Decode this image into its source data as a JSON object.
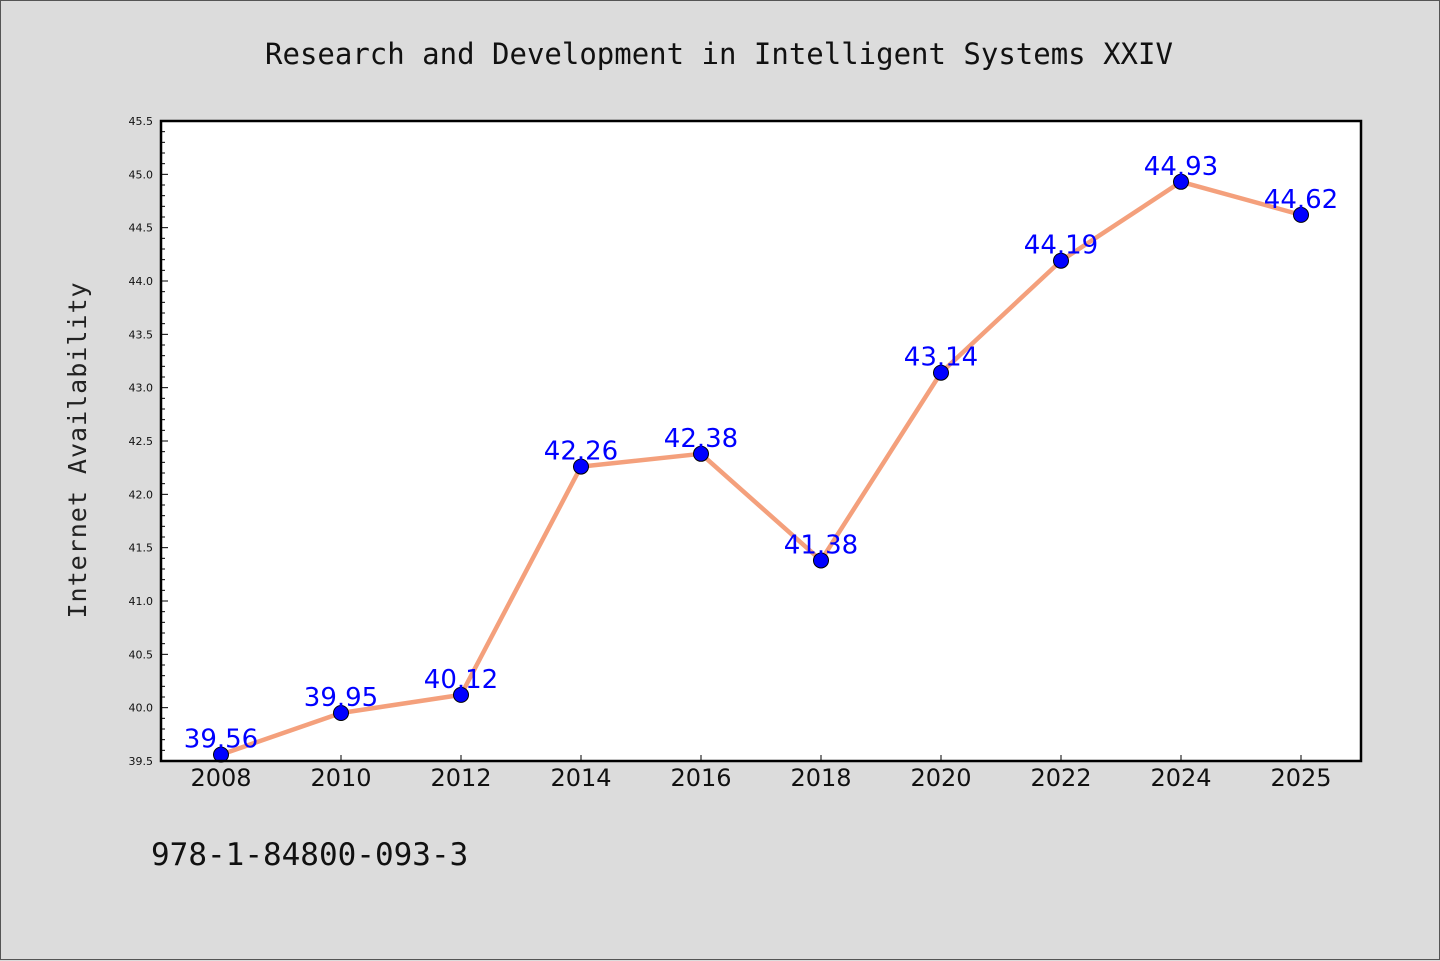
{
  "chart_data": {
    "type": "line",
    "title": "Research and Development in Intelligent Systems XXIV",
    "xlabel": "",
    "ylabel": "Internet Availability",
    "categories": [
      "2008",
      "2010",
      "2012",
      "2014",
      "2016",
      "2018",
      "2020",
      "2022",
      "2024",
      "2025"
    ],
    "series": [
      {
        "values": [
          39.56,
          39.95,
          40.12,
          42.26,
          42.38,
          41.38,
          43.14,
          44.19,
          44.93,
          44.62
        ],
        "line_color": "#f4a07c",
        "marker_color": "#0000ff"
      }
    ],
    "data_labels": [
      "39.56",
      "39.95",
      "40.12",
      "42.26",
      "42.38",
      "41.38",
      "43.14",
      "44.19",
      "44.93",
      "44.62"
    ],
    "ylim": [
      39.5,
      45.5
    ],
    "yticks": [
      "39.5",
      "40.0",
      "40.5",
      "41.0",
      "41.5",
      "42.0",
      "42.5",
      "43.0",
      "43.5",
      "44.0",
      "44.5",
      "45.0",
      "45.5"
    ],
    "grid": false,
    "legend": "none"
  },
  "footer": {
    "text": "978-1-84800-093-3"
  },
  "colors": {
    "background": "#dcdcdc",
    "plot_background": "#ffffff",
    "axes": "#000000"
  }
}
